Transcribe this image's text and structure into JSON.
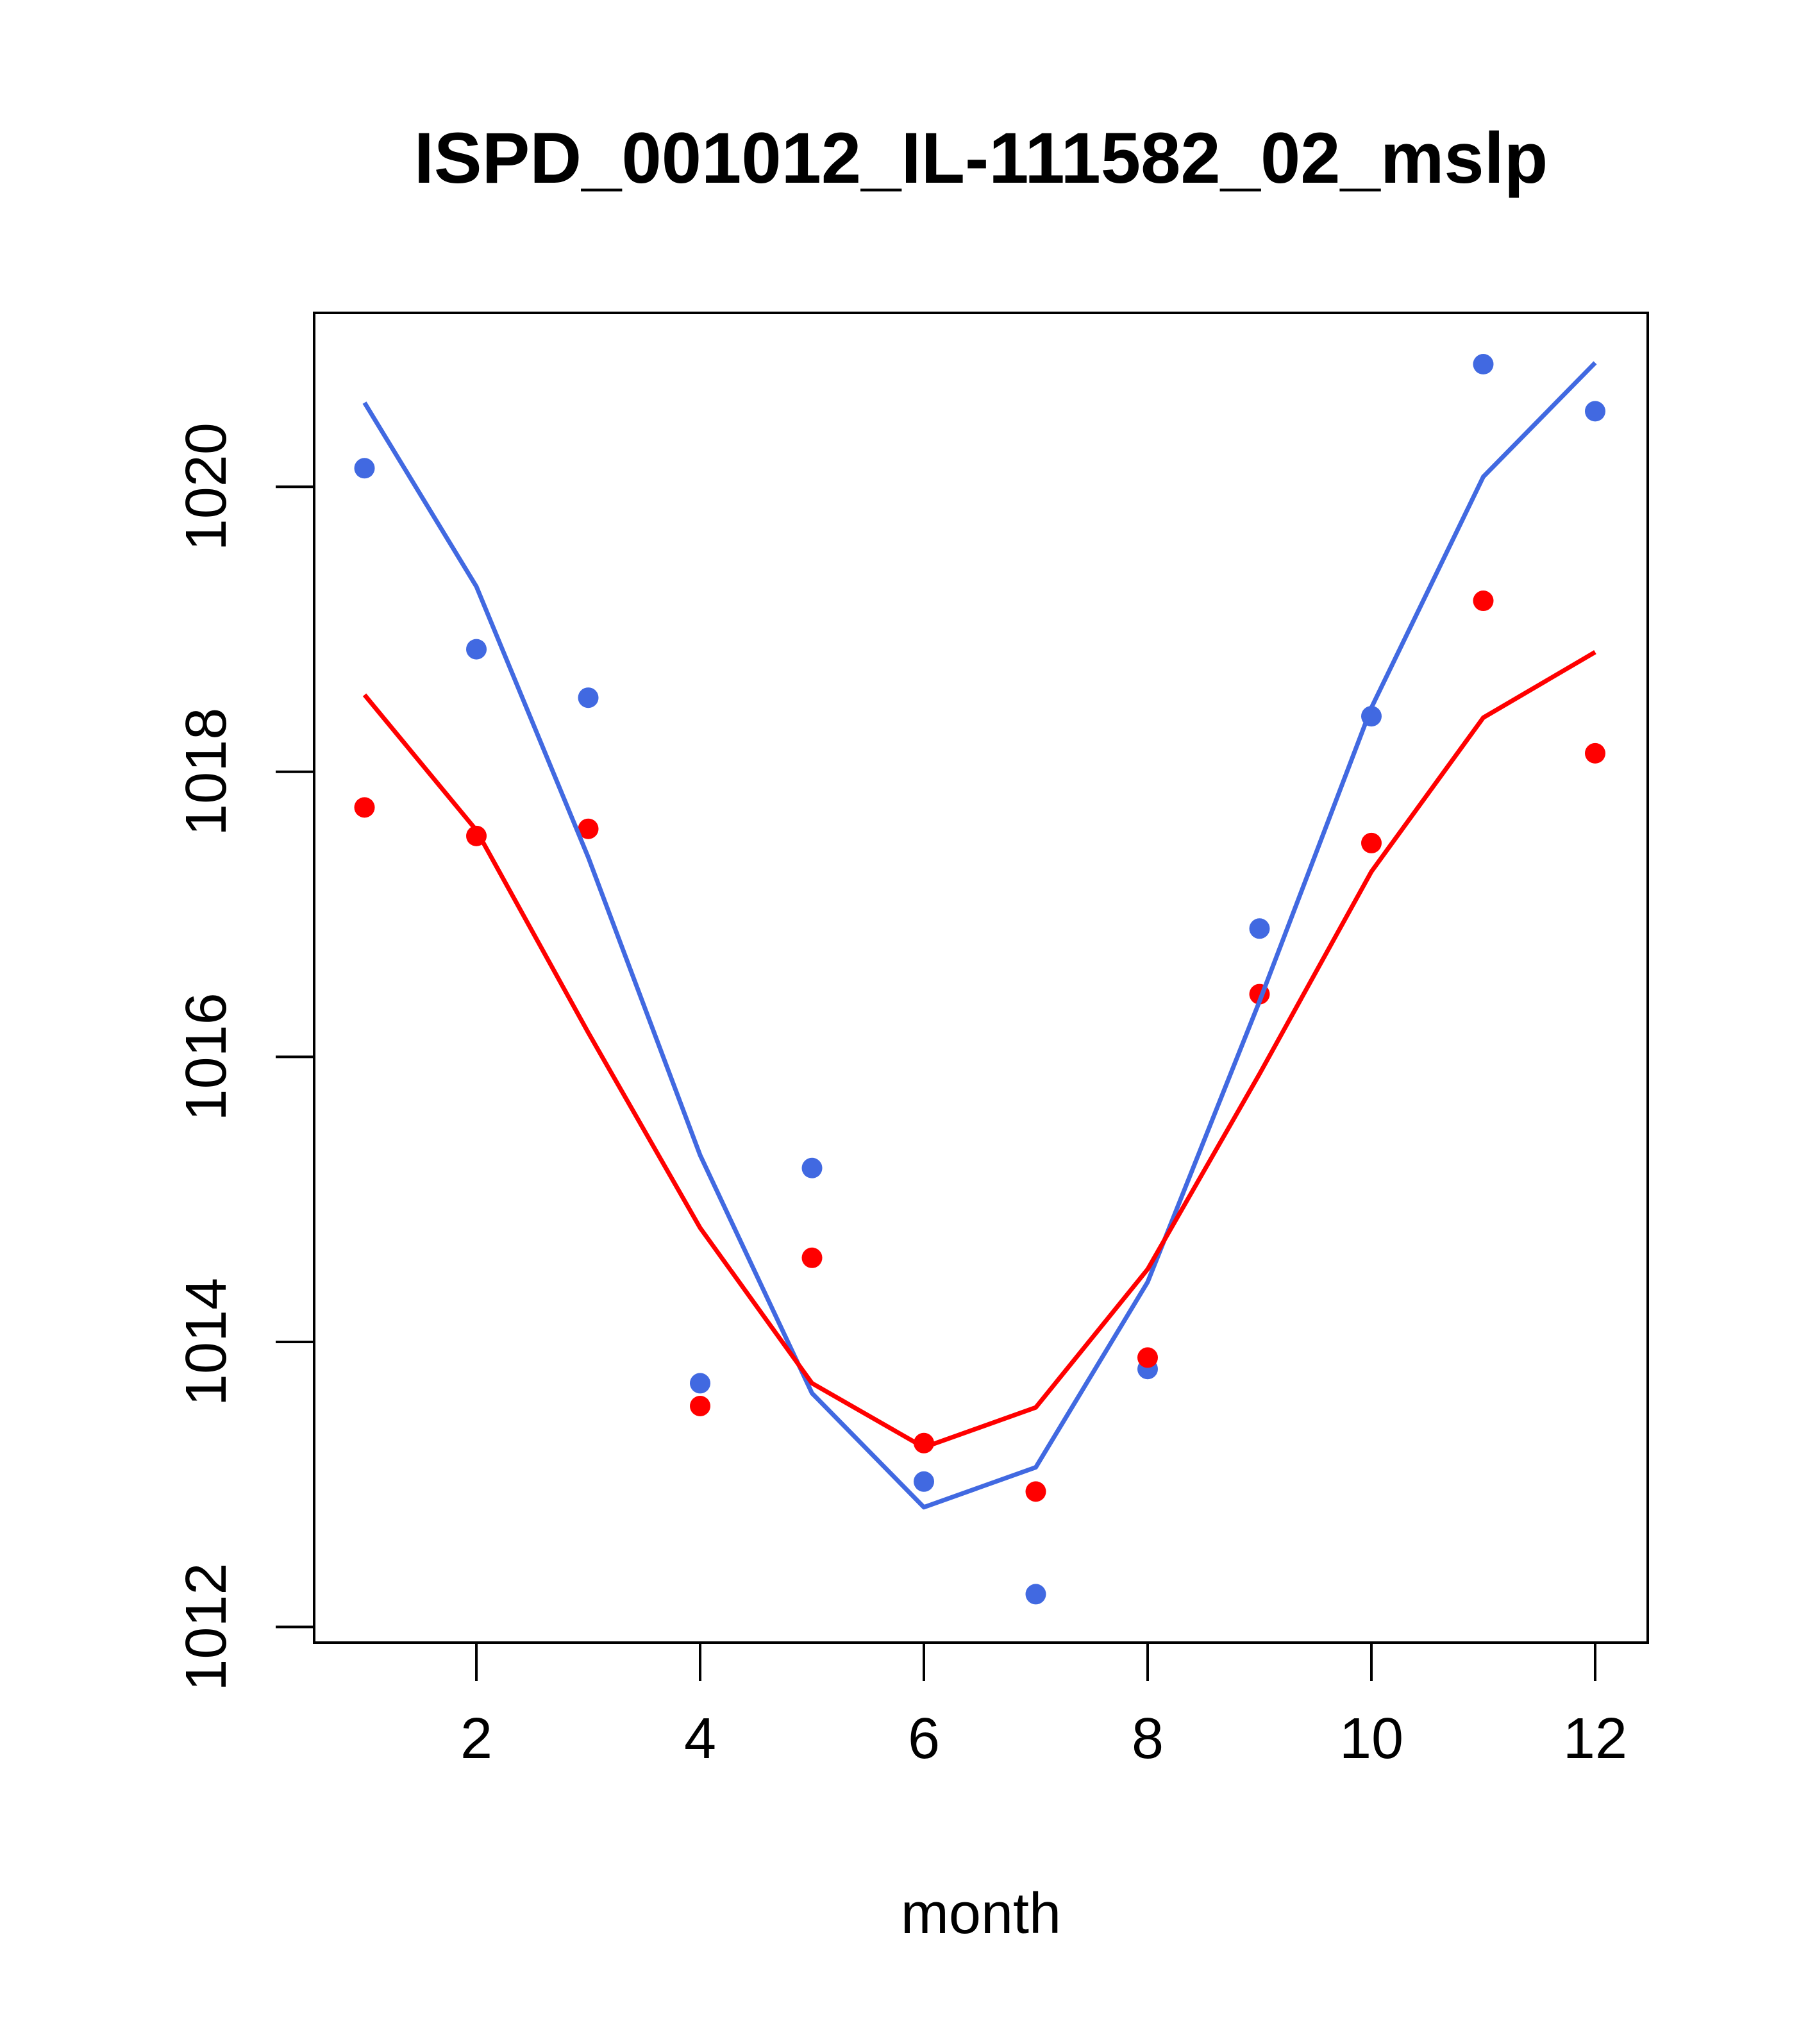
{
  "chart_data": {
    "type": "line",
    "title": "ISPD_001012_IL-111582_02_mslp",
    "xlabel": "month",
    "ylabel": "",
    "xlim": [
      0.55,
      12.47
    ],
    "ylim": [
      1011.89,
      1021.22
    ],
    "xticks": [
      2,
      4,
      6,
      8,
      10,
      12
    ],
    "yticks": [
      1012,
      1014,
      1016,
      1018,
      1020
    ],
    "xtick_labels": [
      "2",
      "4",
      "6",
      "8",
      "10",
      "12"
    ],
    "ytick_labels": [
      "1012",
      "1014",
      "1016",
      "1018",
      "1020"
    ],
    "grid": false,
    "x": [
      1,
      2,
      3,
      4,
      5,
      6,
      7,
      8,
      9,
      10,
      11,
      12
    ],
    "series": [
      {
        "name": "blue points",
        "kind": "points",
        "color": "#4169E1",
        "values": [
          1020.13,
          1018.86,
          1018.52,
          1013.71,
          1015.22,
          1013.02,
          1012.23,
          1013.81,
          1016.9,
          1018.39,
          1020.86,
          1020.53
        ]
      },
      {
        "name": "red points",
        "kind": "points",
        "color": "#FF0000",
        "values": [
          1017.75,
          1017.55,
          1017.6,
          1013.55,
          1014.59,
          1013.29,
          1012.95,
          1013.89,
          1016.44,
          1017.5,
          1019.2,
          1018.13
        ]
      },
      {
        "name": "blue line",
        "kind": "line",
        "color": "#4169E1",
        "values": [
          1020.59,
          1019.3,
          1017.4,
          1015.31,
          1013.64,
          1012.84,
          1013.12,
          1014.42,
          1016.39,
          1018.45,
          1020.07,
          1020.87
        ]
      },
      {
        "name": "red line",
        "kind": "line",
        "color": "#FF0000",
        "values": [
          1018.54,
          1017.59,
          1016.17,
          1014.8,
          1013.71,
          1013.26,
          1013.54,
          1014.51,
          1015.88,
          1017.3,
          1018.38,
          1018.84
        ]
      }
    ]
  }
}
